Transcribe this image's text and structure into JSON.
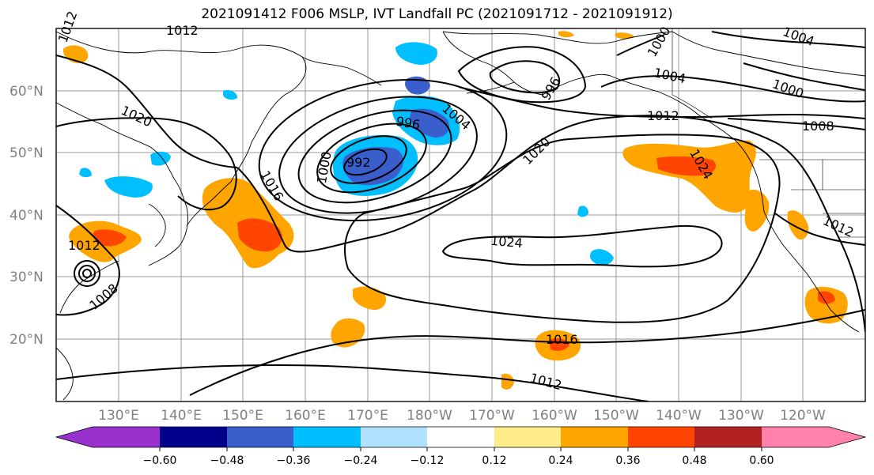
{
  "title": "2021091412 F006 MSLP, IVT Landfall PC (2021091712 - 2021091912)",
  "lat_labels": [
    "60°N",
    "50°N",
    "40°N",
    "30°N",
    "20°N"
  ],
  "lon_labels": [
    "130°E",
    "140°E",
    "150°E",
    "160°E",
    "170°E",
    "180°W",
    "170°W",
    "160°W",
    "150°W",
    "140°W",
    "130°W",
    "120°W"
  ],
  "isobar_labels": [
    "1012",
    "1012",
    "1020",
    "1016",
    "1000",
    "992",
    "996",
    "1004",
    "996",
    "1000",
    "1004",
    "1000",
    "1004",
    "1012",
    "1020",
    "1024",
    "1024",
    "1008",
    "1012",
    "1008",
    "1012",
    "1016",
    "1012"
  ],
  "colorbar": {
    "ticks": [
      "−0.60",
      "−0.48",
      "−0.36",
      "−0.24",
      "−0.12",
      "0.12",
      "0.24",
      "0.36",
      "0.48",
      "0.60"
    ],
    "colors": [
      "#9932cc",
      "#00008b",
      "#3a5fcd",
      "#00bfff",
      "#b0e2ff",
      "#ffffff",
      "#ffec8b",
      "#ffa500",
      "#ff4500",
      "#b22222",
      "#ff82ab"
    ]
  }
}
